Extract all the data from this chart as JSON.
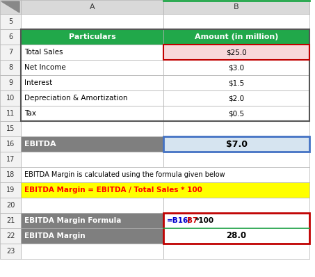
{
  "col_a_label": "A",
  "col_b_label": "B",
  "header_particulars": "Particulars",
  "header_amount": "Amount (in million)",
  "header_bg": "#21A84A",
  "header_text_color": "#FFFFFF",
  "rows": [
    {
      "row": 7,
      "a": "Total Sales",
      "b": "$25.0",
      "b_bg": "#F8D7DA"
    },
    {
      "row": 8,
      "a": "Net Income",
      "b": "$3.0",
      "b_bg": "#FFFFFF"
    },
    {
      "row": 9,
      "a": "Interest",
      "b": "$1.5",
      "b_bg": "#FFFFFF"
    },
    {
      "row": 10,
      "a": "Depreciation & Amortization",
      "b": "$2.0",
      "b_bg": "#FFFFFF"
    },
    {
      "row": 11,
      "a": "Tax",
      "b": "$0.5",
      "b_bg": "#FFFFFF"
    }
  ],
  "ebitda_row": {
    "a": "EBITDA",
    "b": "$7.0",
    "a_bg": "#7F7F7F",
    "b_bg": "#D6E4F0"
  },
  "note_row18": "EBITDA Margin is calculated using the formula given below",
  "formula_row19_bg": "#FFFF00",
  "formula_row19_text": "EBITDA Margin = EBITDA / Total Sales * 100",
  "formula_row19_color": "#FF0000",
  "calc_row21_a": "EBITDA Margin Formula",
  "calc_row21_parts": [
    {
      "text": "=B16/",
      "color": "#0000CC"
    },
    {
      "text": "B7",
      "color": "#CC0000"
    },
    {
      "text": "*100",
      "color": "#000000"
    }
  ],
  "calc_row22_a": "EBITDA Margin",
  "calc_row22_b": "28.0",
  "gray_bg": "#7F7F7F",
  "gray_text": "#FFFFFF",
  "white_bg": "#FFFFFF",
  "black_text": "#000000",
  "header_row_bg": "#D9D9D9",
  "row_num_bg": "#F2F2F2",
  "grid_color": "#B0B0B0",
  "border_dark": "#555555",
  "border_red": "#C00000",
  "border_blue": "#4472C4",
  "bg_color": "#FFFFFF"
}
